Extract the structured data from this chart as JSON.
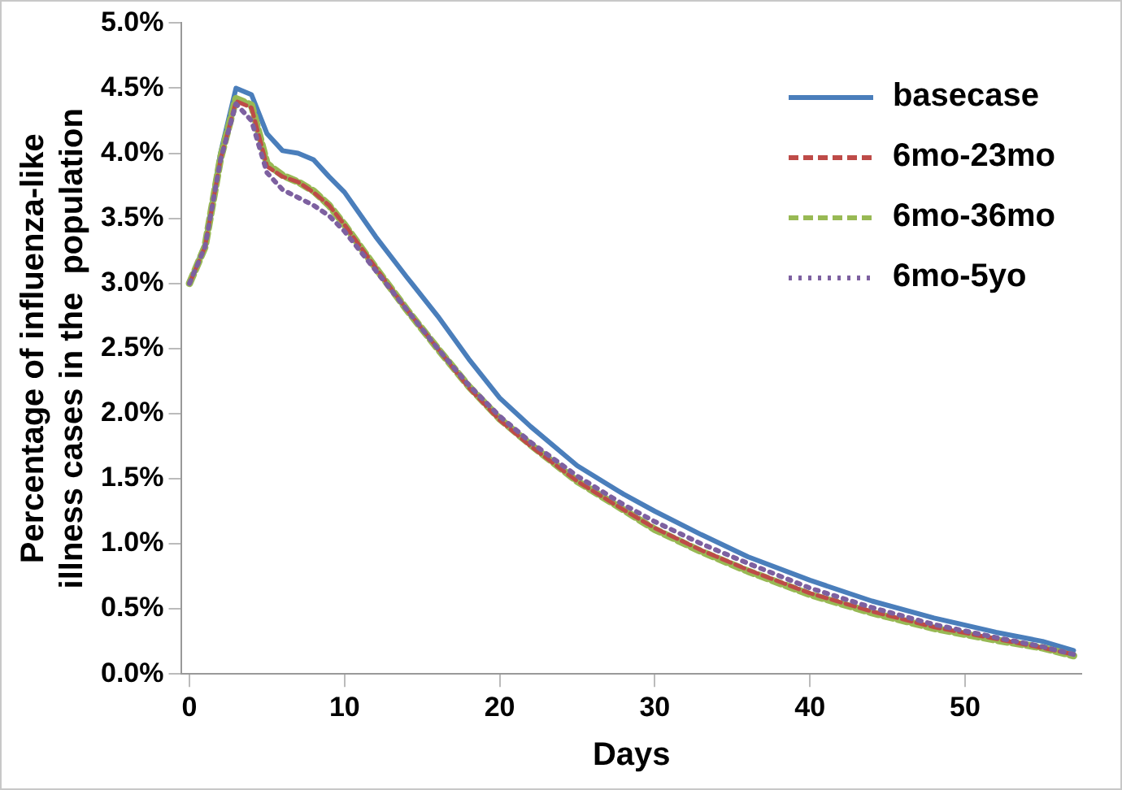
{
  "chart_data": {
    "type": "line",
    "xlabel": "Days",
    "ylabel": "Percentage of influenza-like\nillness cases in the  population",
    "x": [
      0,
      1,
      2,
      3,
      4,
      5,
      6,
      7,
      8,
      9,
      10,
      12,
      14,
      16,
      18,
      20,
      22,
      25,
      28,
      30,
      33,
      36,
      40,
      44,
      48,
      52,
      55,
      57
    ],
    "xlim": [
      -0.5,
      57.5
    ],
    "xticks": [
      0,
      10,
      20,
      30,
      40,
      50
    ],
    "ylim": [
      0,
      5
    ],
    "yticks": [
      {
        "value": 0,
        "label": "0.0%"
      },
      {
        "value": 0.5,
        "label": "0.5%"
      },
      {
        "value": 1,
        "label": "1.0%"
      },
      {
        "value": 1.5,
        "label": "1.5%"
      },
      {
        "value": 2,
        "label": "2.0%"
      },
      {
        "value": 2.5,
        "label": "2.5%"
      },
      {
        "value": 3,
        "label": "3.0%"
      },
      {
        "value": 3.5,
        "label": "3.5%"
      },
      {
        "value": 4,
        "label": "4.0%"
      },
      {
        "value": 4.5,
        "label": "4.5%"
      },
      {
        "value": 5,
        "label": "5.0%"
      }
    ],
    "grid": false,
    "legend": "top right",
    "marker": "none",
    "series": [
      {
        "name": "basecase",
        "color": "#4a7ebb",
        "line_style": "solid",
        "values": [
          3.0,
          3.3,
          4.0,
          4.5,
          4.45,
          4.15,
          4.02,
          4.0,
          3.95,
          3.82,
          3.7,
          3.36,
          3.05,
          2.75,
          2.42,
          2.12,
          1.9,
          1.6,
          1.38,
          1.25,
          1.07,
          0.9,
          0.72,
          0.56,
          0.43,
          0.32,
          0.25,
          0.18
        ]
      },
      {
        "name": "6mo-23mo",
        "color": "#be4b48",
        "line_style": "dashed",
        "values": [
          3.0,
          3.28,
          3.95,
          4.4,
          4.35,
          3.9,
          3.82,
          3.78,
          3.7,
          3.6,
          3.45,
          3.12,
          2.8,
          2.5,
          2.2,
          1.95,
          1.75,
          1.48,
          1.26,
          1.12,
          0.95,
          0.8,
          0.62,
          0.48,
          0.36,
          0.27,
          0.2,
          0.15
        ]
      },
      {
        "name": "6mo-36mo",
        "color": "#98b954",
        "line_style": "dashed",
        "values": [
          3.0,
          3.28,
          3.96,
          4.42,
          4.37,
          3.92,
          3.83,
          3.78,
          3.71,
          3.6,
          3.45,
          3.12,
          2.8,
          2.5,
          2.21,
          1.96,
          1.76,
          1.48,
          1.26,
          1.11,
          0.94,
          0.79,
          0.61,
          0.47,
          0.35,
          0.26,
          0.2,
          0.14
        ]
      },
      {
        "name": "6mo-5yo",
        "color": "#7d60a0",
        "line_style": "dotted",
        "values": [
          3.0,
          3.28,
          3.95,
          4.38,
          4.25,
          3.85,
          3.72,
          3.66,
          3.6,
          3.52,
          3.4,
          3.1,
          2.8,
          2.5,
          2.22,
          1.98,
          1.78,
          1.52,
          1.3,
          1.17,
          1.0,
          0.85,
          0.66,
          0.51,
          0.38,
          0.28,
          0.21,
          0.15
        ]
      }
    ]
  }
}
